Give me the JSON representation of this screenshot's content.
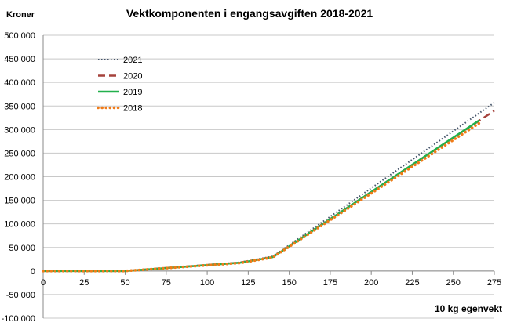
{
  "chart_data": {
    "type": "line",
    "title": "Vektkomponenten i engangsavgiften 2018-2021",
    "ylabel": "Kroner",
    "xlabel": "10 kg egenvekt",
    "xlim": [
      0,
      275
    ],
    "ylim": [
      -100000,
      500000
    ],
    "xticks": [
      0,
      25,
      50,
      75,
      100,
      125,
      150,
      175,
      200,
      225,
      250,
      275
    ],
    "yticks": [
      -100000,
      -50000,
      0,
      50000,
      100000,
      150000,
      200000,
      250000,
      300000,
      350000,
      400000,
      450000,
      500000
    ],
    "ytick_labels": [
      "-100 000",
      "-50 000",
      "0",
      "50 000",
      "100 000",
      "150 000",
      "200 000",
      "250 000",
      "300 000",
      "350 000",
      "400 000",
      "450 000",
      "500 000"
    ],
    "grid": true,
    "legend": "upper-left",
    "series": [
      {
        "name": "2021",
        "color": "#44546a",
        "style": "dotted",
        "x": [
          0,
          50,
          120,
          140,
          275
        ],
        "y": [
          0,
          0,
          18500,
          31000,
          357000
        ]
      },
      {
        "name": "2020",
        "color": "#a5423c",
        "style": "dashed",
        "x": [
          0,
          50,
          120,
          140,
          275
        ],
        "y": [
          0,
          0,
          18000,
          30000,
          340000
        ]
      },
      {
        "name": "2019",
        "color": "#22b04c",
        "style": "solid",
        "x": [
          0,
          50,
          120,
          140,
          266
        ],
        "y": [
          0,
          0,
          17500,
          29500,
          320000
        ]
      },
      {
        "name": "2018",
        "color": "#f07b18",
        "style": "dotted-round",
        "x": [
          0,
          50,
          120,
          140,
          266
        ],
        "y": [
          0,
          0,
          17000,
          29000,
          314000
        ]
      }
    ]
  }
}
